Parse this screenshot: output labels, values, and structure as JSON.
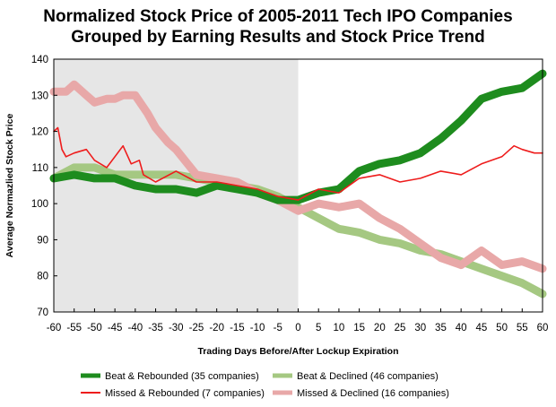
{
  "chart_data": {
    "type": "line",
    "title": [
      "Normalized Stock Price of 2005-2011 Tech IPO Companies",
      "Grouped by Earning Results and Stock Price Trend"
    ],
    "xlabel": "Trading Days Before/After Lockup Expiration",
    "ylabel": "Average Normazlied Stock Price",
    "xlim": [
      -60,
      60
    ],
    "ylim": [
      70,
      140
    ],
    "x_ticks": [
      -60,
      -55,
      -50,
      -45,
      -40,
      -35,
      -30,
      -25,
      -20,
      -15,
      -10,
      -5,
      0,
      5,
      10,
      15,
      20,
      25,
      30,
      35,
      40,
      45,
      50,
      55,
      60
    ],
    "y_ticks": [
      70,
      80,
      90,
      100,
      110,
      120,
      130,
      140
    ],
    "shaded_region": [
      -60,
      0
    ],
    "grid": false,
    "legend_position": "bottom",
    "series": [
      {
        "name": "Beat & Rebounded (35 companies)",
        "color": "#1e8c1e",
        "width": "thick",
        "x": [
          -60,
          -55,
          -50,
          -45,
          -40,
          -35,
          -30,
          -25,
          -20,
          -15,
          -10,
          -5,
          0,
          5,
          10,
          15,
          20,
          25,
          30,
          35,
          40,
          45,
          50,
          55,
          60
        ],
        "y": [
          107,
          108,
          107,
          107,
          105,
          104,
          104,
          103,
          105,
          104,
          103,
          101,
          101,
          103,
          104,
          109,
          111,
          112,
          114,
          118,
          123,
          129,
          131,
          132,
          136
        ]
      },
      {
        "name": "Beat & Declined (46 companies)",
        "color": "#a5c882",
        "width": "thick",
        "x": [
          -60,
          -55,
          -50,
          -45,
          -40,
          -35,
          -30,
          -25,
          -20,
          -15,
          -10,
          -5,
          0,
          5,
          10,
          15,
          20,
          25,
          30,
          35,
          40,
          45,
          50,
          55,
          60
        ],
        "y": [
          107,
          110,
          110,
          108,
          108,
          108,
          108,
          107,
          106,
          105,
          104,
          102,
          99,
          96,
          93,
          92,
          90,
          89,
          87,
          86,
          84,
          82,
          80,
          78,
          75
        ]
      },
      {
        "name": "Missed & Rebounded (7 companies)",
        "color": "#ee1c1c",
        "width": "thin",
        "x": [
          -60,
          -59,
          -58,
          -57,
          -55,
          -52,
          -50,
          -47,
          -45,
          -43,
          -41,
          -39,
          -38,
          -35,
          -30,
          -25,
          -20,
          -15,
          -10,
          -5,
          0,
          5,
          10,
          15,
          20,
          25,
          30,
          35,
          40,
          45,
          50,
          53,
          55,
          58,
          60
        ],
        "y": [
          120,
          121,
          115,
          113,
          114,
          115,
          112,
          110,
          113,
          116,
          111,
          112,
          108,
          106,
          109,
          106,
          106,
          105,
          104,
          102,
          101,
          104,
          103,
          107,
          108,
          106,
          107,
          109,
          108,
          111,
          113,
          116,
          115,
          114,
          114
        ]
      },
      {
        "name": "Missed & Declined (16 companies)",
        "color": "#e8a8a8",
        "width": "thick",
        "x": [
          -60,
          -57,
          -55,
          -52,
          -50,
          -47,
          -45,
          -43,
          -40,
          -37,
          -35,
          -32,
          -30,
          -25,
          -20,
          -15,
          -10,
          -5,
          0,
          5,
          10,
          15,
          20,
          25,
          30,
          35,
          40,
          45,
          50,
          55,
          60
        ],
        "y": [
          131,
          131,
          133,
          130,
          128,
          129,
          129,
          130,
          130,
          125,
          121,
          117,
          115,
          108,
          107,
          106,
          103,
          101,
          98,
          100,
          99,
          100,
          96,
          93,
          89,
          85,
          83,
          87,
          83,
          84,
          82
        ]
      }
    ]
  }
}
